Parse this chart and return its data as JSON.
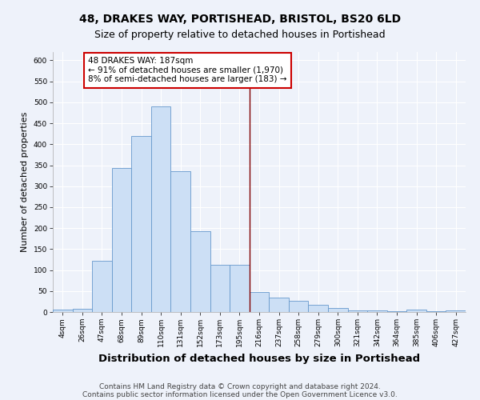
{
  "title": "48, DRAKES WAY, PORTISHEAD, BRISTOL, BS20 6LD",
  "subtitle": "Size of property relative to detached houses in Portishead",
  "xlabel": "Distribution of detached houses by size in Portishead",
  "ylabel": "Number of detached properties",
  "categories": [
    "4sqm",
    "26sqm",
    "47sqm",
    "68sqm",
    "89sqm",
    "110sqm",
    "131sqm",
    "152sqm",
    "173sqm",
    "195sqm",
    "216sqm",
    "237sqm",
    "258sqm",
    "279sqm",
    "300sqm",
    "321sqm",
    "342sqm",
    "364sqm",
    "385sqm",
    "406sqm",
    "427sqm"
  ],
  "values": [
    5,
    8,
    122,
    344,
    420,
    490,
    336,
    193,
    113,
    113,
    48,
    34,
    26,
    18,
    9,
    4,
    3,
    1,
    5,
    2,
    3
  ],
  "bar_color": "#ccdff5",
  "bar_edge_color": "#6699cc",
  "vline_x": 9.5,
  "vline_color": "#800000",
  "annotation_text": "48 DRAKES WAY: 187sqm\n← 91% of detached houses are smaller (1,970)\n8% of semi-detached houses are larger (183) →",
  "annotation_box_color": "#ffffff",
  "annotation_box_edge_color": "#cc0000",
  "ylim": [
    0,
    620
  ],
  "yticks": [
    0,
    50,
    100,
    150,
    200,
    250,
    300,
    350,
    400,
    450,
    500,
    550,
    600
  ],
  "background_color": "#eef2fa",
  "grid_color": "#ffffff",
  "footer1": "Contains HM Land Registry data © Crown copyright and database right 2024.",
  "footer2": "Contains public sector information licensed under the Open Government Licence v3.0.",
  "title_fontsize": 10,
  "subtitle_fontsize": 9,
  "xlabel_fontsize": 9.5,
  "ylabel_fontsize": 8,
  "tick_fontsize": 6.5,
  "annotation_fontsize": 7.5,
  "footer_fontsize": 6.5
}
